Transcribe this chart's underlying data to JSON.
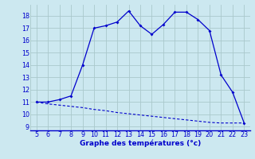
{
  "x": [
    5,
    6,
    7,
    8,
    9,
    10,
    11,
    12,
    13,
    14,
    15,
    16,
    17,
    18,
    19,
    20,
    21,
    22,
    23
  ],
  "y_main": [
    11.0,
    11.0,
    11.2,
    11.5,
    14.0,
    17.0,
    17.2,
    17.5,
    18.4,
    17.2,
    16.5,
    17.3,
    18.3,
    18.3,
    17.7,
    16.8,
    13.2,
    11.8,
    9.3
  ],
  "x_lower": [
    5,
    6,
    7,
    8,
    9,
    10,
    11,
    12,
    13,
    14,
    15,
    16,
    17,
    18,
    19,
    20,
    21,
    22,
    23
  ],
  "y_lower": [
    11.0,
    10.85,
    10.75,
    10.65,
    10.55,
    10.4,
    10.3,
    10.15,
    10.05,
    9.95,
    9.85,
    9.75,
    9.65,
    9.55,
    9.45,
    9.35,
    9.3,
    9.3,
    9.3
  ],
  "line_color": "#0000cc",
  "bg_color": "#cce8f0",
  "grid_color": "#aac8cc",
  "xlabel": "Graphe des températures (°c)",
  "xlim": [
    4.5,
    23.5
  ],
  "ylim": [
    8.7,
    18.9
  ],
  "yticks": [
    9,
    10,
    11,
    12,
    13,
    14,
    15,
    16,
    17,
    18
  ],
  "xticks": [
    5,
    6,
    7,
    8,
    9,
    10,
    11,
    12,
    13,
    14,
    15,
    16,
    17,
    18,
    19,
    20,
    21,
    22,
    23
  ],
  "xlabel_fontsize": 6.5,
  "tick_fontsize": 5.8
}
